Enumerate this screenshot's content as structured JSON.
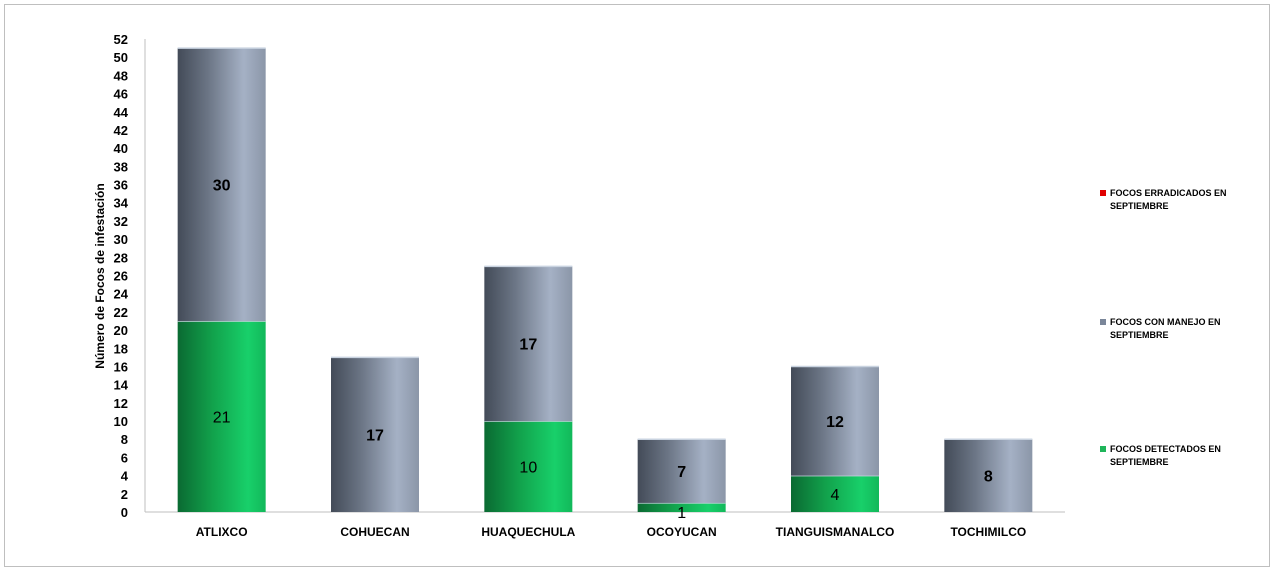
{
  "chart_data": {
    "type": "bar",
    "stacked": true,
    "title": "",
    "xlabel": "",
    "ylabel": "Número de Focos de infestación",
    "ylim": [
      0,
      52
    ],
    "ytick_step": 2,
    "grid": false,
    "legend_position": "right",
    "categories": [
      "ATLIXCO",
      "COHUECAN",
      "HUAQUECHULA",
      "OCOYUCAN",
      "TIANGUISMANALCO",
      "TOCHIMILCO"
    ],
    "series": [
      {
        "name": "FOCOS DETECTADOS EN SEPTIEMBRE",
        "color": "#1fb55a",
        "values": [
          21,
          0,
          10,
          1,
          4,
          0
        ],
        "labels": [
          "21",
          "",
          "10",
          "1",
          "4",
          ""
        ],
        "label_weight": "normal"
      },
      {
        "name": "FOCOS CON MANEJO EN SEPTIEMBRE",
        "color": "#7a8699",
        "values": [
          30,
          17,
          17,
          7,
          12,
          8
        ],
        "labels": [
          "30",
          "17",
          "17",
          "7",
          "12",
          "8"
        ],
        "label_weight": "bold"
      },
      {
        "name": "FOCOS ERRADICADOS EN SEPTIEMBRE",
        "color": "#e00000",
        "values": [
          0,
          0,
          0,
          0,
          0,
          0
        ],
        "labels": [
          "",
          "",
          "",
          "",
          "",
          ""
        ],
        "label_weight": "bold"
      }
    ],
    "legend_order": [
      2,
      1,
      0
    ]
  }
}
